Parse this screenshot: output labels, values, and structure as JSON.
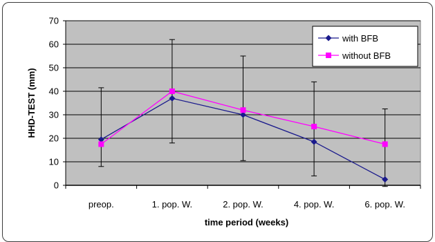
{
  "chart_data": {
    "type": "line",
    "title": "",
    "xlabel": "time period (weeks)",
    "ylabel": "HHD-TEST (mm)",
    "categories": [
      "preop.",
      "1. pop. W.",
      "2. pop. W.",
      "4. pop. W.",
      "6. pop. W."
    ],
    "ylim": [
      0,
      70
    ],
    "yticks": [
      0,
      10,
      20,
      30,
      40,
      50,
      60,
      70
    ],
    "grid": true,
    "legend_position": "top-right",
    "series": [
      {
        "name": "with BFB",
        "color": "#1a1a8c",
        "marker": "diamond",
        "values": [
          19.5,
          37,
          30,
          18.5,
          2.5
        ],
        "error_low": [
          8,
          18,
          10.5,
          4,
          -0.5
        ],
        "error_high": [
          41.5,
          62,
          55,
          44,
          32.5
        ]
      },
      {
        "name": "without BFB",
        "color": "#ff00ff",
        "marker": "square",
        "values": [
          17.5,
          40,
          32,
          25,
          17.5
        ]
      }
    ],
    "colors": {
      "plot_background": "#c0c0c0",
      "gridline": "#000000",
      "error_bar": "#000000"
    }
  }
}
